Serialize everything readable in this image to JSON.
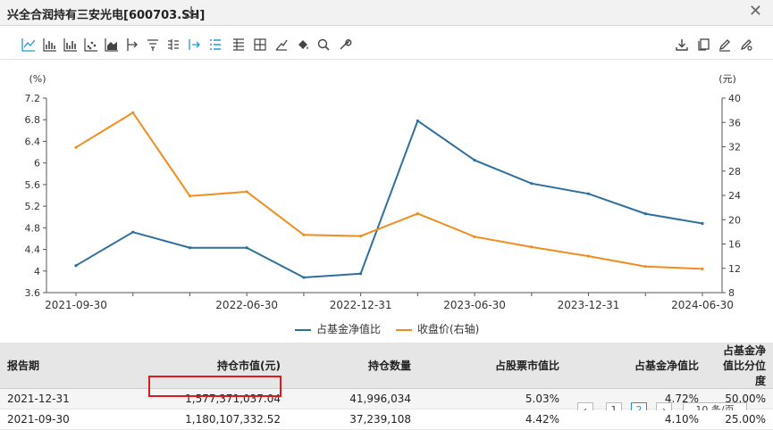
{
  "window": {
    "title": "兴全合润持有三安光电[600703.SH]",
    "download_icon": "download-icon",
    "close_icon": "close-icon"
  },
  "toolbar": {
    "left_icons": [
      "line-chart-icon",
      "bar-chart-icon",
      "stacked-bar-icon",
      "scatter-icon",
      "area-chart-icon",
      "axis-icon",
      "sort-asc-icon",
      "sort-desc-icon",
      "column-align-icon",
      "list-icon",
      "table-align-icon",
      "grid-icon",
      "trend-icon",
      "fill-icon",
      "search-zoom-icon",
      "wrench-icon"
    ],
    "right_icons": [
      "export-icon",
      "copy-icon",
      "edit-icon",
      "settings-icon"
    ],
    "accent": "#1e9ad6"
  },
  "chart_data": {
    "type": "line",
    "left_axis": {
      "unit": "(%)",
      "ticks": [
        "7.2",
        "6.8",
        "6.4",
        "6",
        "5.6",
        "5.2",
        "4.8",
        "4.4",
        "4",
        "3.6"
      ],
      "ylim": [
        3.6,
        7.2
      ]
    },
    "right_axis": {
      "unit": "(元)",
      "ticks": [
        "40",
        "36",
        "32",
        "28",
        "24",
        "20",
        "16",
        "12",
        "8"
      ],
      "ylim": [
        8,
        40
      ]
    },
    "x_ticks": [
      "2021-09-30",
      "2022-06-30",
      "2022-12-31",
      "2023-06-30",
      "2023-12-31",
      "2024-06-30"
    ],
    "x": [
      "2021-09-30",
      "2021-12-31",
      "2022-03-31",
      "2022-06-30",
      "2022-09-30",
      "2022-12-31",
      "2023-03-31",
      "2023-06-30",
      "2023-09-30",
      "2023-12-31",
      "2024-03-31",
      "2024-06-30"
    ],
    "series": [
      {
        "name": "占基金净值比",
        "axis": "left",
        "color": "#2e6f9e",
        "values": [
          4.1,
          4.72,
          4.43,
          4.43,
          3.88,
          3.95,
          6.78,
          6.05,
          5.62,
          5.43,
          5.06,
          4.88
        ]
      },
      {
        "name": "收盘价(右轴)",
        "axis": "right",
        "color": "#f28c1e",
        "values": [
          31.9,
          37.6,
          23.9,
          24.6,
          17.5,
          17.3,
          21.0,
          17.2,
          15.5,
          14.0,
          12.3,
          11.9
        ]
      }
    ],
    "grid": false,
    "legend_position": "bottom"
  },
  "table": {
    "headers": [
      "报告期",
      "持仓市值(元)",
      "持仓数量",
      "占股票市值比",
      "占基金净值比",
      "占基金净值比分位度"
    ],
    "rows": [
      [
        "2021-12-31",
        "1,577,371,037.04",
        "41,996,034",
        "5.03%",
        "4.72%",
        "50.00%"
      ],
      [
        "2021-09-30",
        "1,180,107,332.52",
        "37,239,108",
        "4.42%",
        "4.10%",
        "25.00%"
      ]
    ],
    "highlight_color": "#e0191e"
  },
  "pager": {
    "pages": [
      "1",
      "2"
    ],
    "current": "2",
    "page_size": "10 条/页"
  }
}
